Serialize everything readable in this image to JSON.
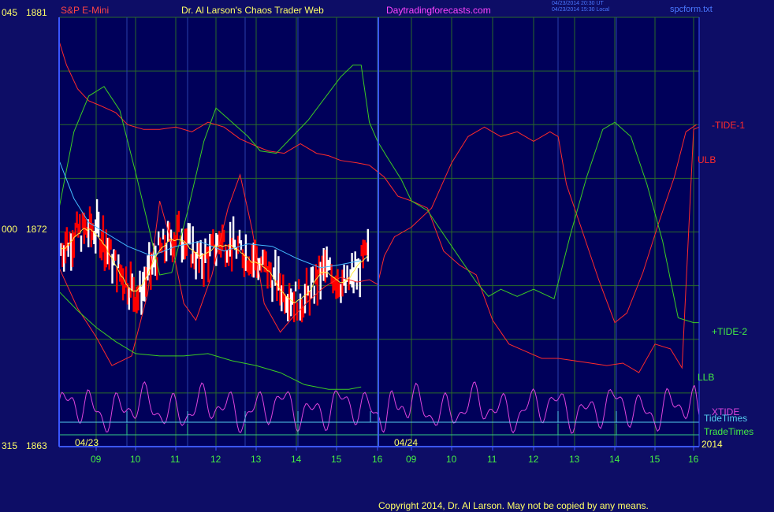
{
  "header": {
    "instrument": "S&P E-Mini",
    "title": "Dr. Al Larson's Chaos Trader Web",
    "site": "Daytradingforecasts.com",
    "timestamp_ut": "04/23/2014 20:30 UT",
    "timestamp_local": "04/23/2014 15:30 Local",
    "filename": "spcform.txt"
  },
  "footer": {
    "copyright": "Copyright 2014, Dr. Al Larson. May not be copied by any means."
  },
  "colors": {
    "background": "#0d0d66",
    "plot_background": "#00005a",
    "grid": "#2a6a2a",
    "frame": "#3a56ff",
    "tide1": "#ff2a2a",
    "tide2": "#3ccc22",
    "xtide": "#dd44dd",
    "tidetimes": "#55ccee",
    "tradetimes": "#33cc88",
    "price_up": "#ffffff",
    "price_down": "#ff0000",
    "ma_fast": "#ffee44",
    "ma_slow": "#44bbff",
    "label_yellow": "#ffff66",
    "label_green": "#44ee44"
  },
  "chart_data": {
    "type": "line",
    "title": "Dr. Al Larson's Chaos Trader Web",
    "instrument": "S&P E-Mini",
    "y_axis_labels": [
      {
        "left": "045",
        "price": "1881"
      },
      {
        "left": "000",
        "price": "1872"
      },
      {
        "left": "315",
        "price": "1863"
      }
    ],
    "ylim": [
      1863,
      1881
    ],
    "date_labels": [
      "04/23",
      "04/24"
    ],
    "year_label": "2014",
    "x_hour_ticks": [
      "09",
      "10",
      "11",
      "12",
      "13",
      "14",
      "15",
      "16",
      "09",
      "10",
      "11",
      "12",
      "13",
      "14",
      "15",
      "16"
    ],
    "grid": true,
    "series_labels": [
      "-TIDE-1",
      "ULB",
      "+TIDE-2",
      "LLB",
      "XTIDE",
      "TideTimes",
      "TradeTimes"
    ],
    "series": [
      {
        "name": "-TIDE-1",
        "color": "red",
        "x": [
          0,
          0.2,
          0.5,
          0.8,
          1.1,
          1.5,
          1.8,
          2.2,
          2.6,
          3.0,
          3.4,
          3.6,
          3.8,
          4.2,
          4.6,
          5.0,
          5.3,
          5.7,
          6.1,
          6.5,
          6.8,
          7.1,
          7.5,
          7.8,
          8.2,
          8.6,
          9.0,
          9.4,
          9.8,
          10.2,
          10.6,
          11.0,
          11.4,
          11.8,
          12.2,
          12.6,
          13.0,
          13.4,
          13.8,
          14.2,
          14.6,
          15.0,
          15.4,
          15.7,
          16.0,
          16.3
        ],
        "values": [
          1880.0,
          1879.0,
          1878.0,
          1877.5,
          1877.3,
          1877.0,
          1876.5,
          1876.3,
          1876.3,
          1876.4,
          1876.2,
          1876.4,
          1876.6,
          1876.4,
          1875.9,
          1875.6,
          1875.4,
          1875.3,
          1875.7,
          1875.3,
          1875.2,
          1875.0,
          1874.9,
          1874.8,
          1874.3,
          1873.5,
          1873.3,
          1873.0,
          1871.2,
          1870.6,
          1870.2,
          1868.3,
          1867.3,
          1867.0,
          1866.7,
          1866.7,
          1866.6,
          1866.5,
          1866.4,
          1866.5,
          1866.1,
          1867.3,
          1867.1,
          1866.3,
          1876.3,
          1876.4
        ],
        "note": "upper bound curve, 04/23 day then projected 04/24"
      },
      {
        "name": "+TIDE-2",
        "color": "green",
        "values": [
          1869.7,
          1870.1,
          1868.4,
          1868.0
        ]
      },
      {
        "name": "ULB",
        "color": "red",
        "values": [
          1875.4,
          1874.0,
          1871.3,
          1869.8,
          1872.7,
          1874.1,
          1876.3,
          1876.1,
          1875.8,
          1867.2,
          1867.3,
          1876.3
        ]
      },
      {
        "name": "LLB",
        "color": "green",
        "values": [
          1870.4,
          1868.0,
          1866.4,
          1866.3,
          1865.8,
          1865.4,
          1865.1,
          1865.0,
          1865.3,
          1867.3,
          1866.4,
          1866.2
        ]
      },
      {
        "name": "XTIDE",
        "color": "magenta",
        "values": [
          1864.0,
          1865.4,
          1864.2,
          1865.6,
          1864.1,
          1864.5,
          1865.4,
          1864.0,
          1865.3,
          1864.2,
          1864.8,
          1865.2,
          1864.1,
          1865.6,
          1864.2,
          1865.6
        ]
      },
      {
        "name": "price",
        "color": "white/red",
        "values": [
          1871.2,
          1872.0,
          1872.1,
          1870.4,
          1869.3,
          1871.2,
          1872.0,
          1870.7,
          1871.7,
          1871.2,
          1870.6,
          1869.5,
          1869.1,
          1870.5,
          1869.7,
          1871.0
        ]
      }
    ]
  }
}
